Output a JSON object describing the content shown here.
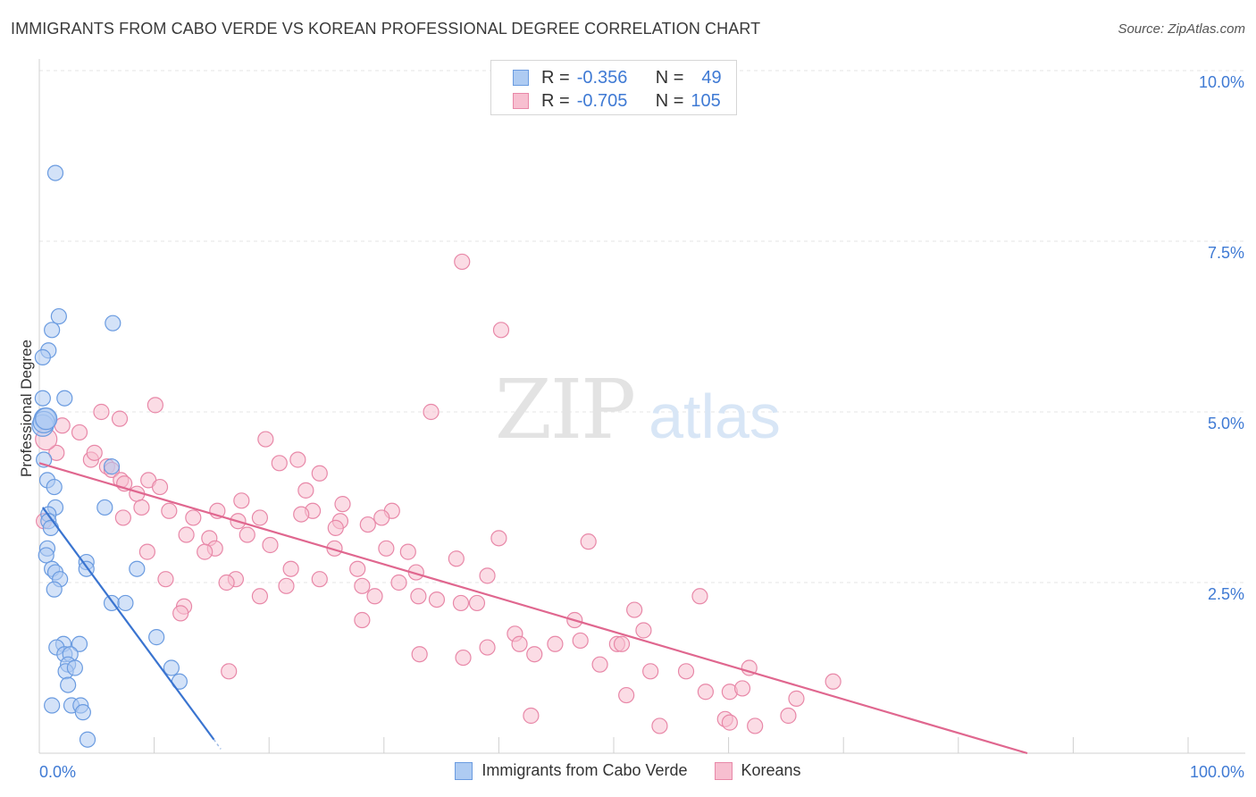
{
  "header": {
    "title": "IMMIGRANTS FROM CABO VERDE VS KOREAN PROFESSIONAL DEGREE CORRELATION CHART",
    "source": "Source: ZipAtlas.com"
  },
  "watermark": {
    "zip": "ZIP",
    "atlas": "atlas"
  },
  "legend": {
    "rows": [
      {
        "r_label": "R =",
        "r_value": "-0.356",
        "n_label": "N =",
        "n_value": "49",
        "color": "#aecbf2",
        "border": "#6a9be0"
      },
      {
        "r_label": "R =",
        "r_value": "-0.705",
        "n_label": "N =",
        "n_value": "105",
        "color": "#f7bfd0",
        "border": "#e888a8"
      }
    ]
  },
  "bottom_legend": {
    "series1": "Immigrants from Cabo Verde",
    "series2": "Koreans"
  },
  "chart_data": {
    "type": "scatter",
    "title": "IMMIGRANTS FROM CABO VERDE VS KOREAN PROFESSIONAL DEGREE CORRELATION CHART",
    "xlabel": "",
    "ylabel": "Professional Degree",
    "xlim": [
      0,
      100
    ],
    "ylim": [
      0,
      10
    ],
    "x_tick_labels": [
      "0.0%",
      "100.0%"
    ],
    "y_ticks": [
      2.5,
      5.0,
      7.5,
      10.0
    ],
    "y_tick_labels": [
      "2.5%",
      "5.0%",
      "7.5%",
      "10.0%"
    ],
    "grid": true,
    "legend_position": "top-center",
    "series": [
      {
        "name": "Immigrants from Cabo Verde",
        "color": "#aecbf2",
        "edge": "#6a9be0",
        "trend_color": "#3a74d0",
        "trend": {
          "x0": 0.3,
          "y0": 3.6,
          "x1": 15.2,
          "y1": 0.2
        },
        "points": [
          [
            1.4,
            8.5
          ],
          [
            1.7,
            6.4
          ],
          [
            6.4,
            6.3
          ],
          [
            1.1,
            6.2
          ],
          [
            0.8,
            5.9
          ],
          [
            0.3,
            5.8
          ],
          [
            2.2,
            5.2
          ],
          [
            0.3,
            5.2
          ],
          [
            0.5,
            4.9
          ],
          [
            0.3,
            4.8
          ],
          [
            0.4,
            4.3
          ],
          [
            6.3,
            4.2
          ],
          [
            0.7,
            4.0
          ],
          [
            1.3,
            3.9
          ],
          [
            1.4,
            3.6
          ],
          [
            5.7,
            3.6
          ],
          [
            0.8,
            3.5
          ],
          [
            0.8,
            3.4
          ],
          [
            0.7,
            3.0
          ],
          [
            0.6,
            2.9
          ],
          [
            1.1,
            2.7
          ],
          [
            1.4,
            2.65
          ],
          [
            4.1,
            2.8
          ],
          [
            4.1,
            2.7
          ],
          [
            8.5,
            2.7
          ],
          [
            1.8,
            2.55
          ],
          [
            1.3,
            2.4
          ],
          [
            6.3,
            2.2
          ],
          [
            7.5,
            2.2
          ],
          [
            10.2,
            1.7
          ],
          [
            2.1,
            1.6
          ],
          [
            3.5,
            1.6
          ],
          [
            1.5,
            1.55
          ],
          [
            2.2,
            1.45
          ],
          [
            2.7,
            1.45
          ],
          [
            2.5,
            1.3
          ],
          [
            2.3,
            1.2
          ],
          [
            3.1,
            1.25
          ],
          [
            11.5,
            1.25
          ],
          [
            12.2,
            1.05
          ],
          [
            2.5,
            1.0
          ],
          [
            1.1,
            0.7
          ],
          [
            2.8,
            0.7
          ],
          [
            3.6,
            0.7
          ],
          [
            3.8,
            0.6
          ],
          [
            4.2,
            0.2
          ],
          [
            0.4,
            4.85
          ],
          [
            0.6,
            4.9
          ],
          [
            1.0,
            3.3
          ]
        ]
      },
      {
        "name": "Koreans",
        "color": "#f7bfd0",
        "edge": "#e888a8",
        "trend_color": "#e0678f",
        "trend": {
          "x0": 0.0,
          "y0": 4.25,
          "x1": 86.0,
          "y1": 0.0
        },
        "points": [
          [
            36.8,
            7.2
          ],
          [
            40.2,
            6.2
          ],
          [
            10.1,
            5.1
          ],
          [
            34.1,
            5.0
          ],
          [
            5.4,
            5.0
          ],
          [
            7.0,
            4.9
          ],
          [
            2.0,
            4.8
          ],
          [
            3.5,
            4.7
          ],
          [
            19.7,
            4.6
          ],
          [
            1.5,
            4.4
          ],
          [
            4.5,
            4.3
          ],
          [
            4.8,
            4.4
          ],
          [
            22.5,
            4.3
          ],
          [
            20.9,
            4.25
          ],
          [
            5.9,
            4.2
          ],
          [
            6.3,
            4.15
          ],
          [
            24.4,
            4.1
          ],
          [
            7.1,
            4.0
          ],
          [
            7.4,
            3.95
          ],
          [
            9.5,
            4.0
          ],
          [
            10.5,
            3.9
          ],
          [
            23.2,
            3.85
          ],
          [
            8.5,
            3.8
          ],
          [
            17.6,
            3.7
          ],
          [
            26.4,
            3.65
          ],
          [
            8.9,
            3.6
          ],
          [
            11.3,
            3.55
          ],
          [
            15.5,
            3.55
          ],
          [
            23.8,
            3.55
          ],
          [
            30.7,
            3.55
          ],
          [
            22.8,
            3.5
          ],
          [
            29.8,
            3.45
          ],
          [
            7.3,
            3.45
          ],
          [
            13.4,
            3.45
          ],
          [
            17.3,
            3.4
          ],
          [
            19.2,
            3.45
          ],
          [
            26.2,
            3.4
          ],
          [
            28.6,
            3.35
          ],
          [
            25.8,
            3.3
          ],
          [
            12.8,
            3.2
          ],
          [
            18.1,
            3.2
          ],
          [
            40.0,
            3.15
          ],
          [
            14.8,
            3.15
          ],
          [
            20.1,
            3.05
          ],
          [
            47.8,
            3.1
          ],
          [
            15.3,
            3.0
          ],
          [
            25.7,
            3.0
          ],
          [
            30.2,
            3.0
          ],
          [
            32.1,
            2.95
          ],
          [
            14.4,
            2.95
          ],
          [
            9.4,
            2.95
          ],
          [
            36.3,
            2.85
          ],
          [
            21.9,
            2.7
          ],
          [
            27.7,
            2.7
          ],
          [
            32.8,
            2.65
          ],
          [
            39.0,
            2.6
          ],
          [
            11.0,
            2.55
          ],
          [
            17.1,
            2.55
          ],
          [
            24.4,
            2.55
          ],
          [
            31.3,
            2.5
          ],
          [
            16.3,
            2.5
          ],
          [
            28.1,
            2.45
          ],
          [
            21.5,
            2.45
          ],
          [
            34.6,
            2.25
          ],
          [
            19.2,
            2.3
          ],
          [
            29.2,
            2.3
          ],
          [
            33.0,
            2.3
          ],
          [
            36.7,
            2.2
          ],
          [
            38.1,
            2.2
          ],
          [
            57.5,
            2.3
          ],
          [
            12.6,
            2.15
          ],
          [
            12.3,
            2.05
          ],
          [
            51.8,
            2.1
          ],
          [
            28.1,
            1.95
          ],
          [
            46.6,
            1.95
          ],
          [
            52.6,
            1.8
          ],
          [
            41.4,
            1.75
          ],
          [
            44.9,
            1.6
          ],
          [
            47.1,
            1.65
          ],
          [
            50.3,
            1.6
          ],
          [
            39.0,
            1.55
          ],
          [
            41.8,
            1.6
          ],
          [
            33.1,
            1.45
          ],
          [
            36.9,
            1.4
          ],
          [
            43.1,
            1.45
          ],
          [
            48.8,
            1.3
          ],
          [
            50.7,
            1.6
          ],
          [
            56.3,
            1.2
          ],
          [
            61.8,
            1.25
          ],
          [
            16.5,
            1.2
          ],
          [
            69.1,
            1.05
          ],
          [
            53.2,
            1.2
          ],
          [
            58.0,
            0.9
          ],
          [
            60.1,
            0.9
          ],
          [
            61.2,
            0.95
          ],
          [
            51.1,
            0.85
          ],
          [
            65.9,
            0.8
          ],
          [
            42.8,
            0.55
          ],
          [
            59.7,
            0.5
          ],
          [
            60.1,
            0.45
          ],
          [
            65.2,
            0.55
          ],
          [
            54.0,
            0.4
          ],
          [
            62.3,
            0.4
          ],
          [
            0.6,
            4.6
          ],
          [
            0.4,
            3.4
          ]
        ]
      }
    ]
  }
}
